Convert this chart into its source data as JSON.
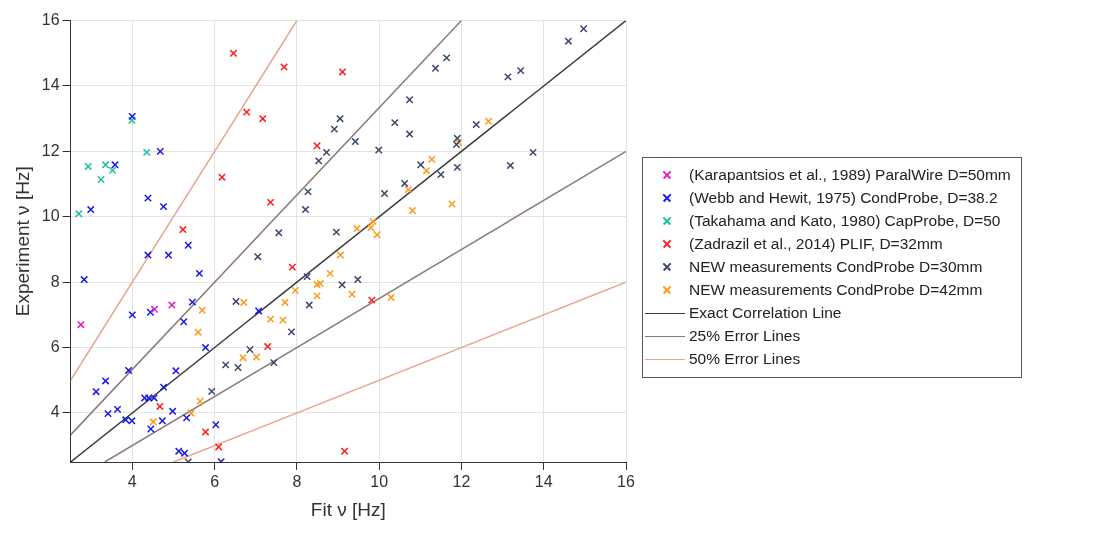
{
  "chart_data": {
    "type": "scatter",
    "xlabel": "Fit ν [Hz]",
    "ylabel": "Experiment ν [Hz]",
    "xlim": [
      2.5,
      16
    ],
    "ylim": [
      2.5,
      16
    ],
    "xticks": [
      4,
      6,
      8,
      10,
      12,
      14,
      16
    ],
    "yticks": [
      4,
      6,
      8,
      10,
      12,
      14,
      16
    ],
    "grid": true,
    "legend": "right",
    "marker": "cross",
    "series": [
      {
        "name": "(Karapantsios et al., 1989) ParalWire D=50mm",
        "color": "#e61ec8",
        "x": [
          2.75,
          4.54,
          4.96
        ],
        "values": [
          6.7,
          7.17,
          7.3
        ]
      },
      {
        "name": "(Webb and Hewit, 1975) CondProbe, D=38.2",
        "color": "#1a1ae6",
        "x": [
          2.99,
          3.58,
          4.0,
          4.68,
          4.38,
          4.76,
          5.36,
          2.83,
          4.38,
          4.88,
          5.63,
          4.0,
          4.44,
          5.46,
          5.25,
          5.78,
          7.07,
          3.91,
          3.12,
          3.35,
          3.41,
          3.64,
          3.84,
          3.99,
          5.06,
          4.76,
          4.3,
          4.4,
          4.53,
          4.45,
          4.73,
          4.98,
          5.32,
          5.13,
          5.27,
          6.03,
          6.16
        ],
        "values": [
          10.22,
          11.59,
          13.07,
          12.0,
          10.57,
          10.31,
          9.13,
          8.08,
          8.83,
          8.83,
          8.27,
          7.0,
          7.08,
          7.39,
          6.79,
          6.0,
          7.12,
          5.3,
          4.65,
          4.98,
          3.98,
          4.11,
          3.79,
          3.76,
          5.29,
          4.79,
          4.46,
          4.46,
          4.46,
          3.51,
          3.76,
          4.05,
          3.85,
          2.83,
          2.77,
          3.64,
          2.51
        ]
      },
      {
        "name": "(Takahama and Kato, 1980) CapProbe, D=50",
        "color": "#1fbfa0",
        "x": [
          2.7,
          2.93,
          3.24,
          3.35,
          3.52,
          3.99,
          4.35
        ],
        "values": [
          10.09,
          11.54,
          11.14,
          11.59,
          11.42,
          12.95,
          11.97
        ]
      },
      {
        "name": "(Zadrazil et al., 2014) PLIF, D=32mm",
        "color": "#ff2020",
        "x": [
          6.46,
          7.69,
          6.78,
          7.17,
          6.18,
          7.36,
          5.23,
          8.49,
          9.11,
          4.67,
          5.78,
          6.1,
          7.29,
          7.89,
          9.82,
          9.16
        ],
        "values": [
          15.0,
          14.58,
          13.2,
          13.0,
          11.21,
          10.44,
          9.61,
          12.17,
          14.43,
          4.2,
          3.42,
          2.96,
          6.03,
          8.46,
          7.45,
          2.83
        ]
      },
      {
        "name": "NEW measurements CondProbe D=30mm",
        "color": "#3b4a6b",
        "x": [
          8.53,
          8.72,
          8.91,
          8.27,
          8.21,
          7.56,
          9.05,
          9.42,
          9.99,
          10.74,
          10.38,
          10.74,
          11.37,
          11.64,
          13.13,
          13.44,
          14.6,
          14.97,
          12.36,
          11.9,
          11.88,
          13.74,
          13.19,
          11.9,
          11.5,
          11.01,
          10.13,
          10.62,
          8.96,
          7.05,
          6.52,
          6.86,
          6.57,
          6.27,
          5.93,
          7.44,
          7.87,
          8.25,
          8.3,
          5.36,
          9.1,
          9.48
        ],
        "values": [
          11.71,
          11.97,
          12.68,
          10.77,
          10.22,
          9.51,
          13.0,
          12.3,
          12.04,
          13.58,
          12.88,
          12.53,
          14.54,
          14.86,
          14.28,
          14.47,
          15.37,
          15.75,
          12.82,
          12.4,
          12.21,
          11.97,
          11.57,
          11.51,
          11.29,
          11.59,
          10.71,
          11.02,
          9.53,
          8.78,
          7.41,
          5.94,
          5.39,
          5.47,
          4.66,
          5.54,
          6.48,
          8.17,
          7.3,
          2.5,
          7.92,
          8.08
        ]
      },
      {
        "name": "NEW measurements CondProbe D=42mm",
        "color": "#ff9a1a",
        "x": [
          12.66,
          11.93,
          11.28,
          11.15,
          10.71,
          10.81,
          11.77,
          9.46,
          9.85,
          9.8,
          9.95,
          6.71,
          6.69,
          7.02,
          7.36,
          7.66,
          7.71,
          7.96,
          8.81,
          8.49,
          8.57,
          8.49,
          5.7,
          5.6,
          5.65,
          5.43,
          4.51,
          9.06,
          9.34,
          10.29
        ],
        "values": [
          12.92,
          12.27,
          11.76,
          11.41,
          10.83,
          10.19,
          10.39,
          9.64,
          9.86,
          9.67,
          9.45,
          7.38,
          5.69,
          5.71,
          6.87,
          6.84,
          7.38,
          7.75,
          8.27,
          7.93,
          7.96,
          7.58,
          7.14,
          6.47,
          4.36,
          3.99,
          3.73,
          8.83,
          7.63,
          7.53
        ]
      },
      {
        "name": "Exact Correlation Line",
        "type": "line",
        "marker": "none",
        "color": "#3a3a3a",
        "line_style": "solid",
        "x": [
          2.5,
          16
        ],
        "values": [
          2.5,
          16
        ]
      },
      {
        "name": "25% Error Lines",
        "type": "line",
        "marker": "none",
        "color": "#8c7878",
        "line_style": "solid",
        "x": [
          2.5,
          12
        ],
        "values": [
          3.33,
          16
        ]
      },
      {
        "type": "line",
        "marker": "none",
        "color": "#8c7878",
        "line_style": "solid",
        "x": [
          3.33,
          16
        ],
        "values": [
          2.5,
          12
        ]
      },
      {
        "name": "50% Error Lines",
        "type": "line",
        "marker": "none",
        "color": "#e8a48c",
        "line_style": "solid",
        "x": [
          2.5,
          8
        ],
        "values": [
          5,
          16
        ]
      },
      {
        "type": "line",
        "marker": "none",
        "color": "#e8a48c",
        "line_style": "solid",
        "x": [
          5,
          16
        ],
        "values": [
          2.5,
          8
        ]
      }
    ]
  }
}
